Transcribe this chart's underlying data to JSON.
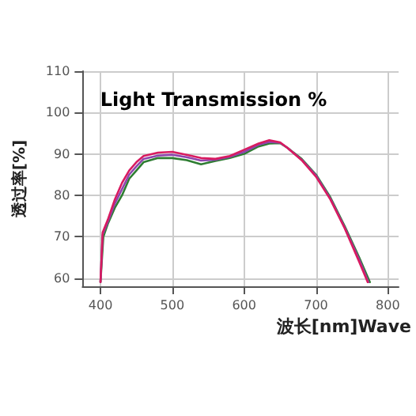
{
  "chart_data": {
    "type": "line",
    "title": "Light Transmission %",
    "xlabel": "波长[nm]Wave",
    "ylabel": "透过率[%]",
    "xlim": [
      375,
      815
    ],
    "xticks": [
      400,
      500,
      600,
      700,
      800
    ],
    "ylim": [
      58,
      110
    ],
    "yticks": [
      60,
      70,
      80,
      90,
      100,
      110
    ],
    "grid": true,
    "marker": "none",
    "line_style": "solid",
    "series": [
      {
        "color": "#2e7d32",
        "x": [
          400,
          404,
          410,
          420,
          430,
          440,
          450,
          460,
          480,
          500,
          520,
          540,
          560,
          580,
          600,
          620,
          635,
          650,
          660,
          680,
          700,
          720,
          740,
          760,
          775
        ],
        "values": [
          59,
          70,
          73,
          77,
          80,
          84,
          86,
          88,
          89,
          89,
          88.5,
          87.5,
          88.3,
          89,
          90,
          91.8,
          92.5,
          92.6,
          91.5,
          88.8,
          85,
          79.5,
          72.5,
          65,
          59
        ]
      },
      {
        "color": "#8e44ad",
        "x": [
          400,
          403,
          410,
          420,
          430,
          440,
          450,
          460,
          480,
          500,
          520,
          540,
          560,
          580,
          600,
          620,
          635,
          650,
          660,
          680,
          700,
          720,
          740,
          760,
          773
        ],
        "values": [
          59,
          70.5,
          73.5,
          78,
          81.5,
          85,
          87,
          88.8,
          89.6,
          89.8,
          89.2,
          88.4,
          88.6,
          89.3,
          90.5,
          92.2,
          92.9,
          92.7,
          91.5,
          88.6,
          84.8,
          79.2,
          72.2,
          64.5,
          59
        ]
      },
      {
        "color": "#d81b60",
        "x": [
          400,
          403,
          410,
          420,
          430,
          440,
          450,
          460,
          480,
          500,
          520,
          540,
          560,
          580,
          600,
          620,
          635,
          650,
          660,
          680,
          700,
          720,
          740,
          760,
          772
        ],
        "values": [
          59,
          71,
          74,
          79,
          83,
          86,
          88,
          89.5,
          90.3,
          90.5,
          89.8,
          89,
          88.8,
          89.5,
          91,
          92.5,
          93.3,
          92.8,
          91.5,
          88.5,
          84.5,
          79,
          72,
          64,
          59
        ]
      }
    ]
  }
}
